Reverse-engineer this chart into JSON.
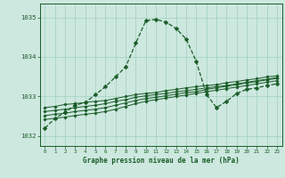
{
  "background_color": "#cde8df",
  "grid_color": "#9ecfbf",
  "line_color": "#1a5c28",
  "xlabel": "Graphe pression niveau de la mer (hPa)",
  "xlim": [
    -0.5,
    23.5
  ],
  "ylim": [
    1031.75,
    1035.35
  ],
  "yticks": [
    1032,
    1033,
    1034,
    1035
  ],
  "xticks": [
    0,
    1,
    2,
    3,
    4,
    5,
    6,
    7,
    8,
    9,
    10,
    11,
    12,
    13,
    14,
    15,
    16,
    17,
    18,
    19,
    20,
    21,
    22,
    23
  ],
  "series": [
    {
      "y": [
        1032.2,
        1032.45,
        1032.6,
        1032.78,
        1032.85,
        1033.05,
        1033.25,
        1033.5,
        1033.75,
        1034.35,
        1034.92,
        1034.95,
        1034.88,
        1034.72,
        1034.45,
        1033.88,
        1033.05,
        1032.72,
        1032.88,
        1033.08,
        1033.18,
        1033.22,
        1033.28,
        1033.32
      ],
      "linestyle": "--",
      "linewidth": 0.9,
      "markersize": 2.5
    },
    {
      "y": [
        1032.72,
        1032.75,
        1032.8,
        1032.82,
        1032.85,
        1032.88,
        1032.9,
        1032.95,
        1033.0,
        1033.05,
        1033.08,
        1033.1,
        1033.15,
        1033.18,
        1033.22,
        1033.25,
        1033.28,
        1033.3,
        1033.35,
        1033.38,
        1033.42,
        1033.45,
        1033.5,
        1033.52
      ],
      "linestyle": "-",
      "linewidth": 0.7,
      "markersize": 1.8
    },
    {
      "y": [
        1032.62,
        1032.65,
        1032.68,
        1032.72,
        1032.75,
        1032.78,
        1032.82,
        1032.88,
        1032.92,
        1032.98,
        1033.02,
        1033.05,
        1033.08,
        1033.12,
        1033.15,
        1033.18,
        1033.22,
        1033.25,
        1033.28,
        1033.32,
        1033.36,
        1033.4,
        1033.44,
        1033.48
      ],
      "linestyle": "-",
      "linewidth": 0.7,
      "markersize": 1.8
    },
    {
      "y": [
        1032.52,
        1032.55,
        1032.58,
        1032.62,
        1032.65,
        1032.68,
        1032.72,
        1032.78,
        1032.84,
        1032.9,
        1032.95,
        1032.98,
        1033.02,
        1033.06,
        1033.1,
        1033.12,
        1033.18,
        1033.22,
        1033.26,
        1033.3,
        1033.34,
        1033.38,
        1033.42,
        1033.46
      ],
      "linestyle": "-",
      "linewidth": 0.7,
      "markersize": 1.8
    },
    {
      "y": [
        1032.42,
        1032.45,
        1032.48,
        1032.52,
        1032.55,
        1032.58,
        1032.62,
        1032.68,
        1032.75,
        1032.82,
        1032.88,
        1032.92,
        1032.96,
        1033.0,
        1033.04,
        1033.08,
        1033.12,
        1033.16,
        1033.2,
        1033.24,
        1033.28,
        1033.32,
        1033.36,
        1033.4
      ],
      "linestyle": "-",
      "linewidth": 0.7,
      "markersize": 1.8
    }
  ]
}
